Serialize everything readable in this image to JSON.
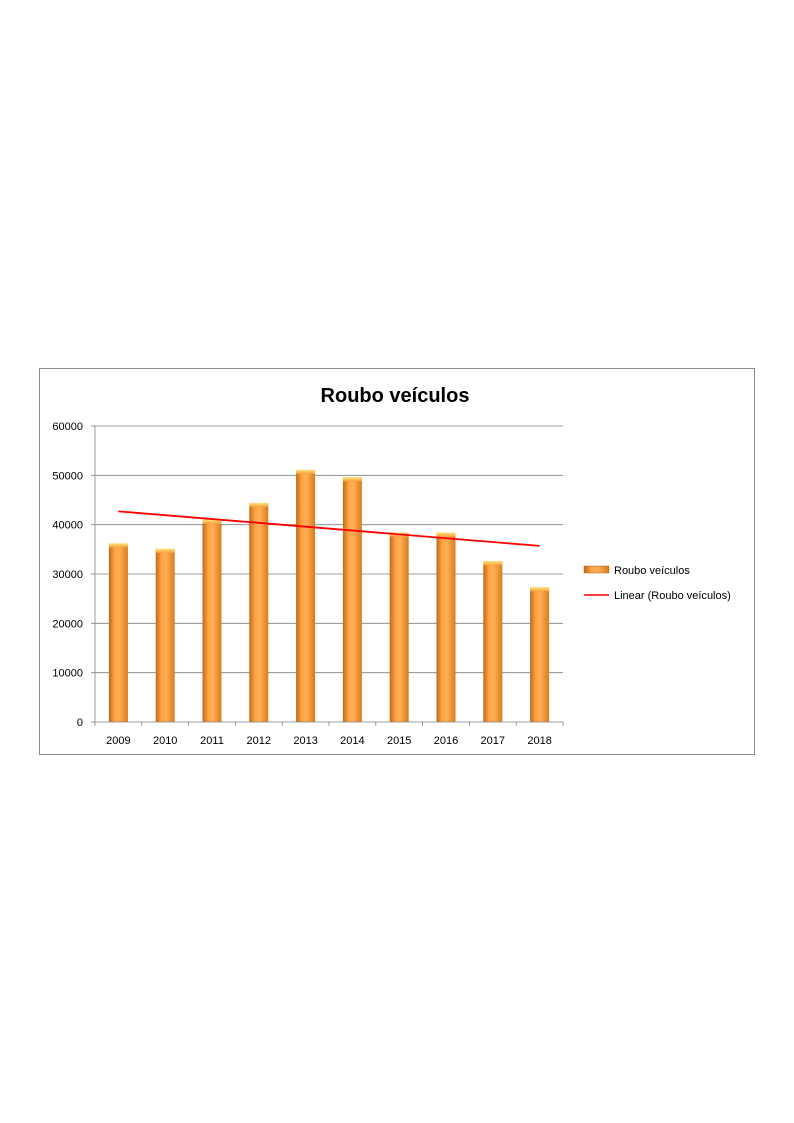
{
  "chart_data": {
    "type": "bar",
    "title": "Roubo veículos",
    "xlabel": "",
    "ylabel": "",
    "categories": [
      "2009",
      "2010",
      "2011",
      "2012",
      "2013",
      "2014",
      "2015",
      "2016",
      "2017",
      "2018"
    ],
    "series": [
      {
        "name": "Roubo veículos",
        "values": [
          36200,
          35100,
          41000,
          44400,
          51100,
          49600,
          38400,
          38400,
          32600,
          27300
        ]
      }
    ],
    "trendline": {
      "type": "linear",
      "name": "Linear (Roubo veículos)",
      "start": 42700,
      "end": 35700
    },
    "ylim": [
      0,
      60000
    ],
    "yticks": [
      "0",
      "10000",
      "20000",
      "30000",
      "40000",
      "50000",
      "60000"
    ],
    "grid": true,
    "legend": "right",
    "colors": {
      "bar": "#f7962e",
      "bar_highlight": "#ffb45a",
      "bar_shadow": "#c06a15",
      "trend": "#ff0000",
      "grid": "#808080"
    }
  }
}
